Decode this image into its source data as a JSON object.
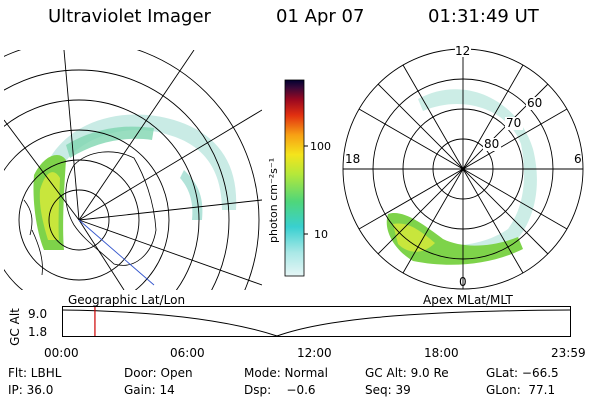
{
  "header": {
    "title": "Ultraviolet Imager",
    "date": "01 Apr 07",
    "time": "01:31:49 UT"
  },
  "colorbar": {
    "unit_label": "photon cm⁻²s⁻¹",
    "ticks": [
      "100",
      "10"
    ]
  },
  "geo_panel": {
    "label": "Geographic Lat/Lon"
  },
  "apex_panel": {
    "label": "Apex  MLat/MLT",
    "mlt_labels": [
      "12",
      "18",
      "6",
      "0"
    ],
    "lat_labels": [
      "60",
      "70",
      "80"
    ]
  },
  "timeline": {
    "ylabel": "GC Alt",
    "yticks": [
      "9.0",
      "1.8"
    ],
    "xticks": [
      "00:00",
      "06:00",
      "12:00",
      "18:00",
      "23:59"
    ],
    "current_time_fraction": 0.063
  },
  "footer": {
    "flt": "Flt: LBHL",
    "door": "Door: Open",
    "mode": "Mode: Normal",
    "gc_alt": "GC Alt: 9.0 Re",
    "glat": "GLat: −66.5",
    "ip": "IP: 36.0",
    "gain": "Gain: 14",
    "dsp": "Dsp:    −0.6",
    "seq": "Seq: 39",
    "glon": "GLon:  77.1"
  },
  "colors": {
    "accent_marker": "#cc0000"
  }
}
